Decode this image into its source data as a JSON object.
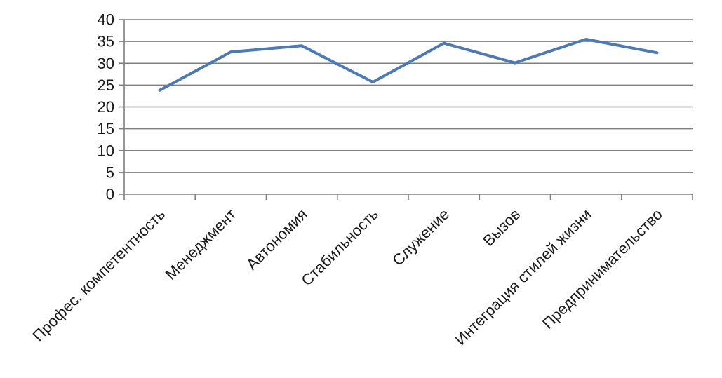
{
  "chart_data": {
    "type": "line",
    "title": "",
    "xlabel": "",
    "ylabel": "",
    "categories": [
      "Профес. компетентность",
      "Менеджмент",
      "Автономия",
      "Стабильность",
      "Служение",
      "Вызов",
      "Интеграция стилей жизни",
      "Предпринимательство"
    ],
    "series": [
      {
        "values": [
          23.8,
          32.6,
          34.0,
          25.7,
          34.6,
          30.1,
          35.5,
          32.4
        ],
        "color": "#4a7ab7"
      }
    ],
    "ylim": [
      0,
      40
    ],
    "yticks": [
      0,
      5,
      10,
      15,
      20,
      25,
      30,
      35,
      40
    ],
    "grid": true,
    "gridline_color": "#7f7f7f",
    "axis_color": "#7f7f7f",
    "legend": "none"
  }
}
